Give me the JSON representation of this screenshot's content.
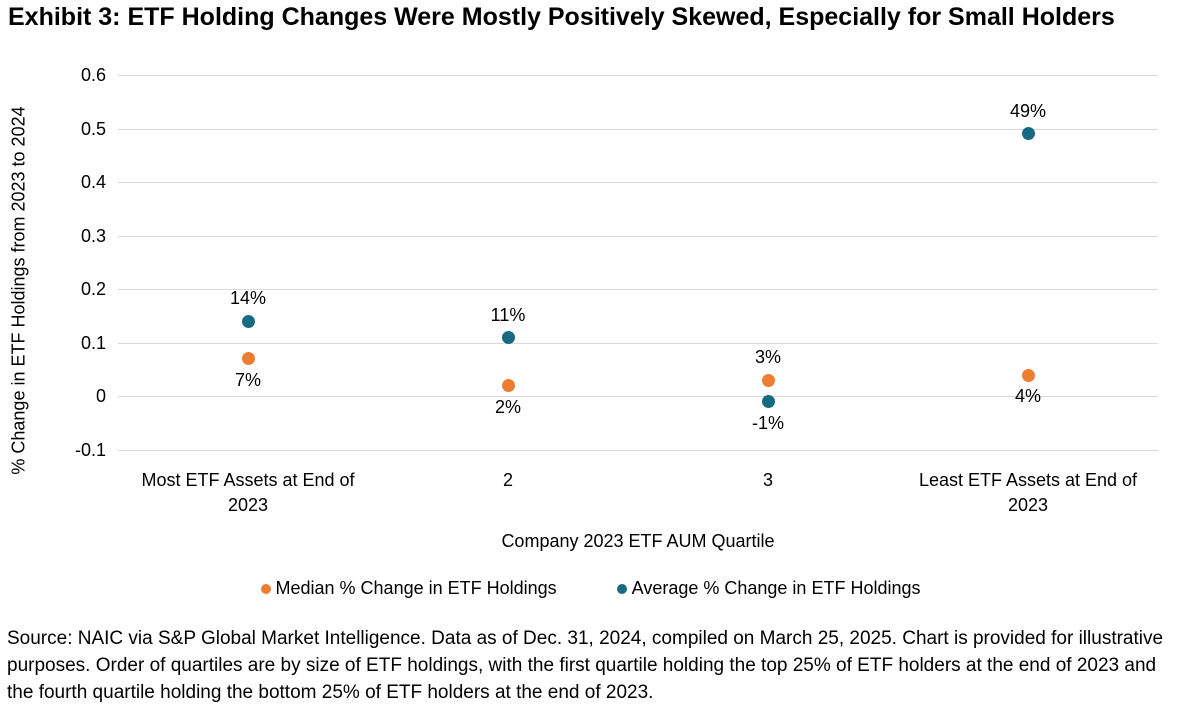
{
  "title": "Exhibit 3: ETF Holding Changes Were Mostly Positively Skewed, Especially for Small Holders",
  "chart_data": {
    "type": "scatter",
    "categories": [
      "Most ETF Assets at End of 2023",
      "2",
      "3",
      "Least ETF Assets at End of 2023"
    ],
    "series": [
      {
        "name": "Median % Change in ETF Holdings",
        "color": "#ED7D31",
        "values": [
          0.07,
          0.02,
          0.03,
          0.04
        ],
        "point_labels": [
          "7%",
          "2%",
          "3%",
          "4%"
        ],
        "label_positions": [
          "below",
          "below",
          "above",
          "below"
        ]
      },
      {
        "name": "Average % Change in ETF Holdings",
        "color": "#176A82",
        "values": [
          0.14,
          0.11,
          -0.01,
          0.49
        ],
        "point_labels": [
          "14%",
          "11%",
          "-1%",
          "49%"
        ],
        "label_positions": [
          "above",
          "above",
          "below",
          "above"
        ]
      }
    ],
    "xlabel": "Company 2023 ETF AUM Quartile",
    "ylabel": "% Change in ETF Holdings from 2023 to 2024",
    "ylim": [
      -0.1,
      0.6
    ],
    "yticks": [
      0.6,
      0.5,
      0.4,
      0.3,
      0.2,
      0.1,
      0,
      -0.1
    ],
    "grid": true,
    "gridline_color": "#D9D9D9",
    "legend_position": "bottom"
  },
  "source_note": "Source: NAIC via S&P Global Market Intelligence. Data as of Dec. 31, 2024, compiled on March 25, 2025. Chart is provided for illustrative purposes. Order of quartiles are by size of ETF holdings, with the first quartile holding the top 25% of ETF holders at the end of 2023 and the fourth quartile holding the bottom 25% of ETF holders at the end of 2023."
}
